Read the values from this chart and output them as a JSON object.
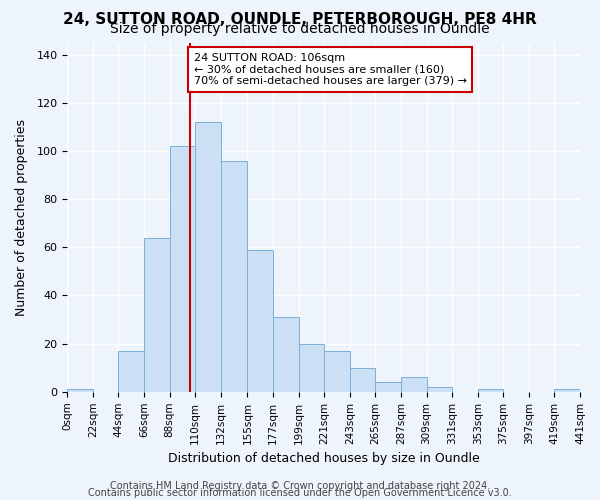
{
  "title": "24, SUTTON ROAD, OUNDLE, PETERBOROUGH, PE8 4HR",
  "subtitle": "Size of property relative to detached houses in Oundle",
  "xlabel": "Distribution of detached houses by size in Oundle",
  "ylabel": "Number of detached properties",
  "bar_edges": [
    0,
    22,
    44,
    66,
    88,
    110,
    132,
    155,
    177,
    199,
    221,
    243,
    265,
    287,
    309,
    331,
    353,
    375,
    397,
    419,
    441
  ],
  "bar_heights": [
    1,
    0,
    17,
    64,
    102,
    112,
    96,
    59,
    31,
    20,
    17,
    10,
    4,
    6,
    2,
    0,
    1,
    0,
    0,
    1
  ],
  "bar_color": "#cce0f5",
  "bar_edge_color": "#7ab0d8",
  "vline_x": 106,
  "vline_color": "#cc0000",
  "ylim": [
    0,
    145
  ],
  "xlim": [
    0,
    441
  ],
  "annotation_text": "24 SUTTON ROAD: 106sqm\n← 30% of detached houses are smaller (160)\n70% of semi-detached houses are larger (379) →",
  "annotation_box_edge_color": "#cc0000",
  "annotation_box_face_color": "#ffffff",
  "tick_labels": [
    "0sqm",
    "22sqm",
    "44sqm",
    "66sqm",
    "88sqm",
    "110sqm",
    "132sqm",
    "155sqm",
    "177sqm",
    "199sqm",
    "221sqm",
    "243sqm",
    "265sqm",
    "287sqm",
    "309sqm",
    "331sqm",
    "353sqm",
    "375sqm",
    "397sqm",
    "419sqm",
    "441sqm"
  ],
  "yticks": [
    0,
    20,
    40,
    60,
    80,
    100,
    120,
    140
  ],
  "footer_line1": "Contains HM Land Registry data © Crown copyright and database right 2024.",
  "footer_line2": "Contains public sector information licensed under the Open Government Licence v3.0.",
  "bg_color": "#eef4fb",
  "grid_color": "#ffffff",
  "title_fontsize": 11,
  "subtitle_fontsize": 10,
  "label_fontsize": 9,
  "tick_fontsize": 7.5,
  "footer_fontsize": 7
}
